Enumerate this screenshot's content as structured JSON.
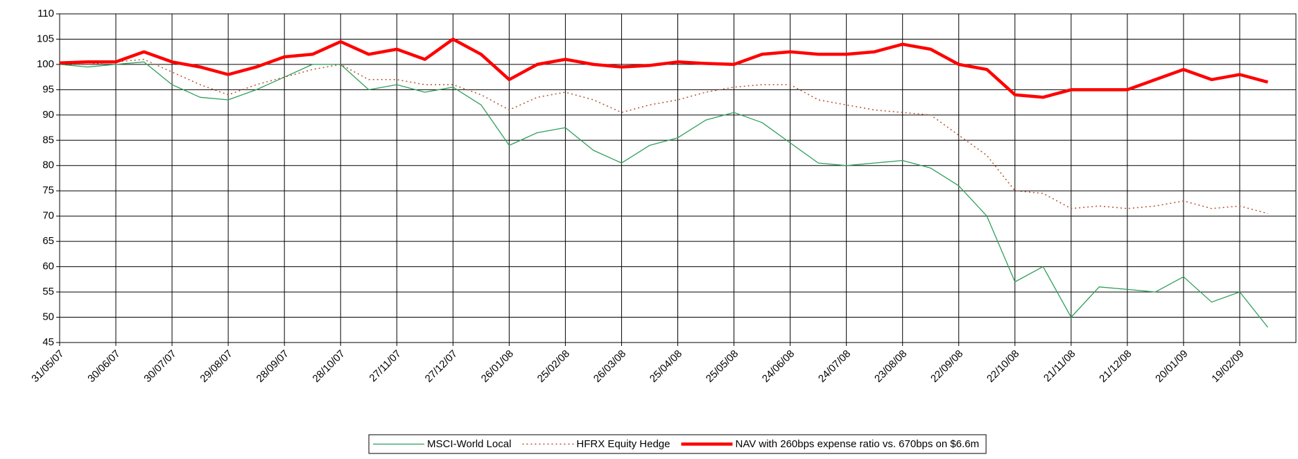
{
  "chart_data": {
    "type": "line",
    "x": [
      "31/05/07",
      "15/06/07",
      "30/06/07",
      "15/07/07",
      "30/07/07",
      "14/08/07",
      "29/08/07",
      "13/09/07",
      "28/09/07",
      "13/10/07",
      "28/10/07",
      "12/11/07",
      "27/11/07",
      "12/12/07",
      "27/12/07",
      "11/01/08",
      "26/01/08",
      "10/02/08",
      "25/02/08",
      "11/03/08",
      "26/03/08",
      "10/04/08",
      "25/04/08",
      "10/05/08",
      "25/05/08",
      "09/06/08",
      "24/06/08",
      "09/07/08",
      "24/07/08",
      "08/08/08",
      "23/08/08",
      "07/09/08",
      "22/09/08",
      "07/10/08",
      "22/10/08",
      "06/11/08",
      "21/11/08",
      "06/12/08",
      "21/12/08",
      "05/01/09",
      "20/01/09",
      "04/02/09",
      "19/02/09",
      "06/03/09"
    ],
    "series": [
      {
        "name": "MSCI-World Local",
        "color": "#2e9e5b",
        "style": "solid",
        "values": [
          100,
          99.5,
          100,
          100.5,
          96,
          93.5,
          93,
          95,
          97.5,
          100,
          100,
          95,
          96,
          94.5,
          95.5,
          92,
          84,
          86.5,
          87.5,
          83,
          80.5,
          84,
          85.5,
          89,
          90.5,
          88.5,
          84.5,
          80.5,
          80,
          80.5,
          81,
          79.5,
          76,
          70,
          57,
          60,
          50,
          56,
          55.5,
          55,
          58,
          53,
          55,
          48
        ]
      },
      {
        "name": "HFRX Equity Hedge",
        "color": "#b5502a",
        "style": "dotted",
        "values": [
          100,
          100,
          100.5,
          101,
          98.5,
          96,
          94,
          96,
          97.5,
          99,
          100,
          97,
          97,
          96,
          96,
          94,
          91,
          93.5,
          94.5,
          93,
          90.5,
          92,
          93,
          94.5,
          95.5,
          96,
          96,
          93,
          92,
          91,
          90.5,
          90,
          86,
          82,
          75,
          74.5,
          71.5,
          72,
          71.5,
          72,
          73,
          71.5,
          72,
          70.5
        ]
      },
      {
        "name": "NAV with 260bps expense ratio vs. 670bps on $6.6m",
        "color": "#ff0000",
        "style": "thick",
        "values": [
          100.3,
          100.5,
          100.5,
          102.5,
          100.5,
          99.5,
          98,
          99.5,
          101.5,
          102,
          104.5,
          102,
          103,
          101,
          105,
          102,
          97,
          100,
          101,
          100,
          99.5,
          99.8,
          100.5,
          100.2,
          100,
          102,
          102.5,
          102,
          102,
          102.5,
          104,
          103,
          100,
          99,
          94,
          93.5,
          95,
          95,
          95,
          97,
          99,
          97,
          98,
          96.5
        ]
      }
    ],
    "xlim": [
      "31/05/07",
      "21/03/09"
    ],
    "xticks": [
      "31/05/07",
      "30/06/07",
      "30/07/07",
      "29/08/07",
      "28/09/07",
      "28/10/07",
      "27/11/07",
      "27/12/07",
      "26/01/08",
      "25/02/08",
      "26/03/08",
      "25/04/08",
      "25/05/08",
      "24/06/08",
      "24/07/08",
      "23/08/08",
      "22/09/08",
      "22/10/08",
      "21/11/08",
      "21/12/08",
      "20/01/09",
      "19/02/09"
    ],
    "ylim": [
      45,
      110
    ],
    "yticks": [
      45,
      50,
      55,
      60,
      65,
      70,
      75,
      80,
      85,
      90,
      95,
      100,
      105,
      110
    ],
    "grid": true,
    "legend": "bottom"
  }
}
